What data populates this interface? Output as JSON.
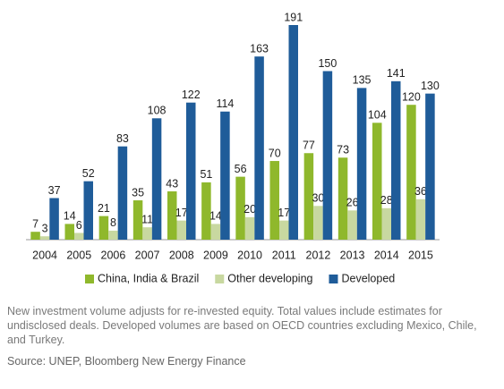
{
  "chart_data": {
    "type": "bar",
    "categories": [
      "2004",
      "2005",
      "2006",
      "2007",
      "2008",
      "2009",
      "2010",
      "2011",
      "2012",
      "2013",
      "2014",
      "2015"
    ],
    "series": [
      {
        "name": "China, India & Brazil",
        "color": "#8fb82c",
        "values": [
          7,
          14,
          21,
          35,
          43,
          51,
          56,
          70,
          77,
          73,
          104,
          120
        ]
      },
      {
        "name": "Other developing",
        "color": "#c8d8a0",
        "values": [
          3,
          6,
          8,
          11,
          17,
          14,
          20,
          17,
          30,
          26,
          28,
          36
        ]
      },
      {
        "name": "Developed",
        "color": "#1f5c99",
        "values": [
          37,
          52,
          83,
          108,
          122,
          114,
          163,
          191,
          150,
          135,
          141,
          130
        ]
      }
    ],
    "legend": "bottom"
  },
  "notes": "New investment volume adjusts for re-invested equity.  Total values include estimates for undisclosed deals. Developed volumes are based on OECD countries excluding Mexico, Chile, and Turkey.",
  "source": "Source: UNEP, Bloomberg New Energy Finance"
}
